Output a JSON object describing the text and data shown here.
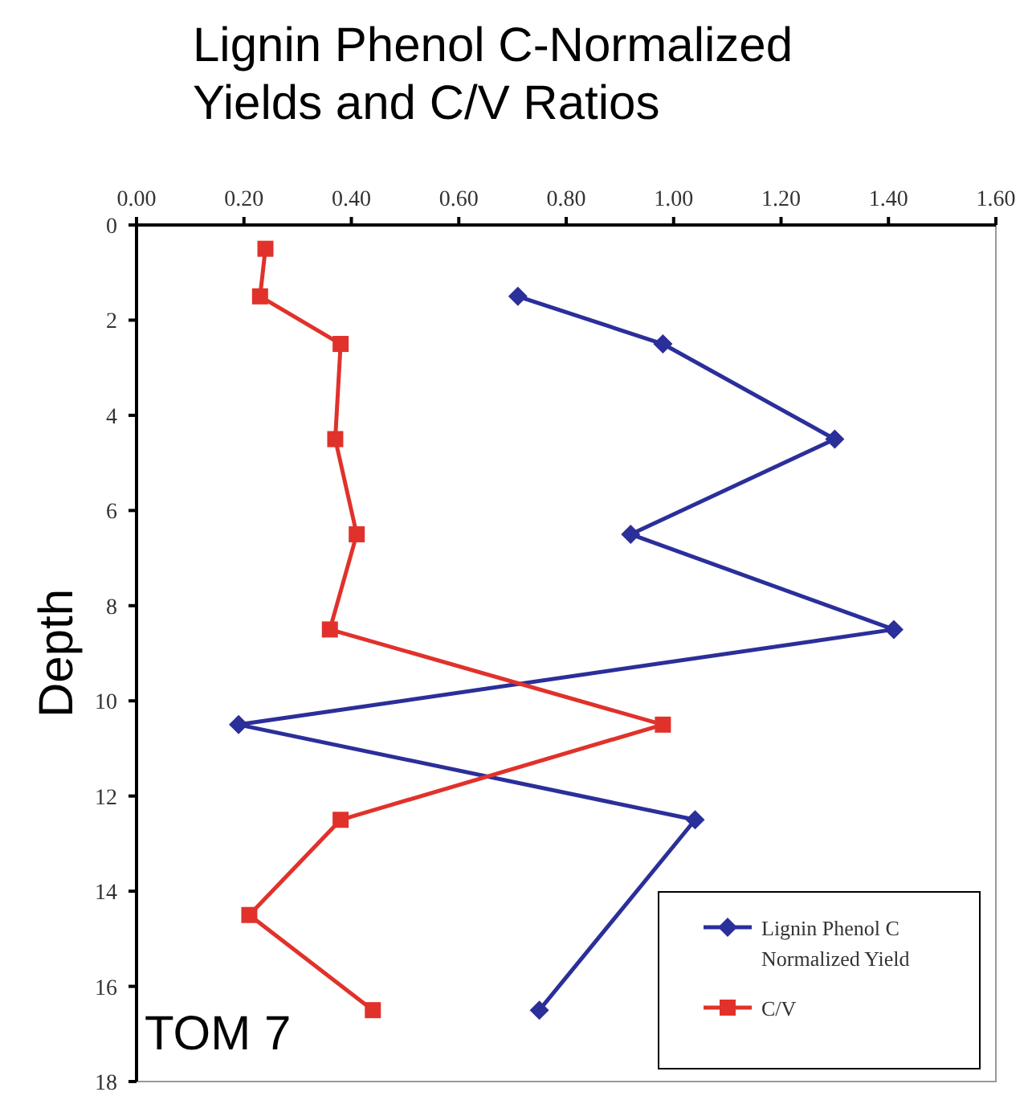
{
  "chart_data": {
    "type": "line",
    "title": "Lignin Phenol C-Normalized Yields and C/V Ratios",
    "ylabel": "Depth",
    "xlim": [
      0,
      1.6
    ],
    "xticks": [
      {
        "value": 0,
        "label": "0.00"
      },
      {
        "value": 0.2,
        "label": "0.20"
      },
      {
        "value": 0.4,
        "label": "0.40"
      },
      {
        "value": 0.6,
        "label": "0.60"
      },
      {
        "value": 0.8,
        "label": "0.80"
      },
      {
        "value": 1,
        "label": "1.00"
      },
      {
        "value": 1.2,
        "label": "1.20"
      },
      {
        "value": 1.4,
        "label": "1.40"
      },
      {
        "value": 1.6,
        "label": "1.60"
      }
    ],
    "ylim": [
      18,
      0
    ],
    "yticks": [
      0,
      2,
      4,
      6,
      8,
      10,
      12,
      14,
      16,
      18
    ],
    "series": [
      {
        "name": "Lignin Phenol C Normalized Yield",
        "color": "#2b2f9a",
        "marker": "diamond",
        "x": [
          0.71,
          0.98,
          1.3,
          0.92,
          1.41,
          0.19,
          1.04,
          0.75
        ],
        "values": [
          1.5,
          2.5,
          4.5,
          6.5,
          8.5,
          10.5,
          12.5,
          16.5
        ]
      },
      {
        "name": "C/V",
        "color": "#e0322b",
        "marker": "square",
        "x": [
          0.24,
          0.23,
          0.38,
          0.37,
          0.41,
          0.36,
          0.98,
          0.38,
          0.21,
          0.44
        ],
        "values": [
          0.5,
          1.5,
          2.5,
          4.5,
          6.5,
          8.5,
          10.5,
          12.5,
          14.5,
          16.5
        ]
      }
    ],
    "legend": "bottom right",
    "grid": false,
    "annotations": [
      "TOM 7"
    ]
  }
}
